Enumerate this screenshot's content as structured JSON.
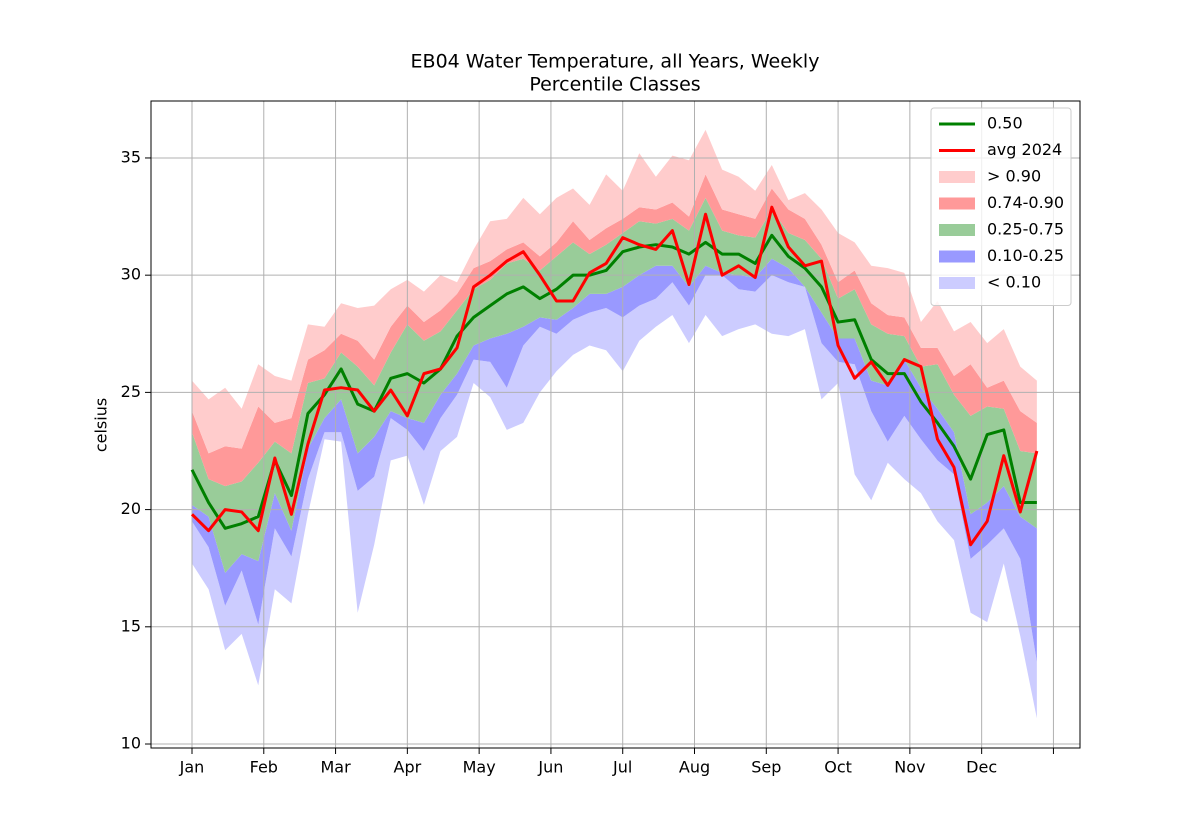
{
  "chart_data": {
    "type": "percentile-bands",
    "title": [
      "EB04 Water Temperature, all Years, Weekly",
      "Percentile Classes"
    ],
    "ylabel": "celsius",
    "x": [
      0,
      0.231,
      0.462,
      0.692,
      0.923,
      1.154,
      1.385,
      1.615,
      1.846,
      2.077,
      2.308,
      2.538,
      2.769,
      3,
      3.231,
      3.462,
      3.692,
      3.923,
      4.154,
      4.385,
      4.615,
      4.846,
      5.077,
      5.308,
      5.538,
      5.769,
      6,
      6.231,
      6.462,
      6.692,
      6.923,
      7.154,
      7.385,
      7.615,
      7.846,
      8.077,
      8.308,
      8.538,
      8.769,
      9,
      9.231,
      9.462,
      9.692,
      9.923,
      10.154,
      10.385,
      10.615,
      10.846,
      11.077,
      11.308,
      11.538,
      11.769
    ],
    "xlim": [
      -0.571,
      12.37
    ],
    "xticks": [
      {
        "value": 0,
        "label": "Jan"
      },
      {
        "value": 1,
        "label": "Feb"
      },
      {
        "value": 2,
        "label": "Mar"
      },
      {
        "value": 3,
        "label": "Apr"
      },
      {
        "value": 4,
        "label": "May"
      },
      {
        "value": 5,
        "label": "Jun"
      },
      {
        "value": 6,
        "label": "Jul"
      },
      {
        "value": 7,
        "label": "Aug"
      },
      {
        "value": 8,
        "label": "Sep"
      },
      {
        "value": 9,
        "label": "Oct"
      },
      {
        "value": 10,
        "label": "Nov"
      },
      {
        "value": 11,
        "label": "Dec"
      },
      {
        "value": 12,
        "label": null
      }
    ],
    "ylim": [
      9.83,
      37.43
    ],
    "yticks": [
      10,
      15,
      20,
      25,
      30,
      35
    ],
    "grid": true,
    "legend": "upper right",
    "band_floor": [
      17.7,
      16.6,
      14.0,
      14.7,
      12.5,
      16.6,
      16.0,
      19.8,
      23.0,
      22.9,
      15.6,
      18.5,
      22.1,
      22.3,
      20.2,
      22.5,
      23.1,
      25.4,
      24.8,
      23.4,
      23.7,
      25.0,
      25.9,
      26.6,
      27.0,
      26.8,
      25.9,
      27.2,
      27.8,
      28.3,
      27.1,
      28.3,
      27.4,
      27.7,
      27.9,
      27.5,
      27.4,
      27.7,
      24.7,
      25.4,
      21.5,
      20.4,
      22.0,
      21.3,
      20.7,
      19.5,
      18.7,
      15.6,
      15.2,
      17.7,
      14.6,
      11.1
    ],
    "bands": [
      {
        "name": "< 0.10",
        "color": "#ccccff",
        "values": [
          19.5,
          18.4,
          15.9,
          17.4,
          15.1,
          19.2,
          18.0,
          21.3,
          23.3,
          23.3,
          20.8,
          21.4,
          23.9,
          23.4,
          22.5,
          23.9,
          24.9,
          26.4,
          26.3,
          25.2,
          27.0,
          27.8,
          27.5,
          28.1,
          28.4,
          28.6,
          28.2,
          28.7,
          29.0,
          29.7,
          28.7,
          30.0,
          30.0,
          29.4,
          29.3,
          30.0,
          29.7,
          29.5,
          27.1,
          26.3,
          26.2,
          24.2,
          22.9,
          24.0,
          23.0,
          22.1,
          21.5,
          17.9,
          18.5,
          19.2,
          17.9,
          13.5
        ]
      },
      {
        "name": "0.10-0.25",
        "color": "#9999ff",
        "values": [
          20.2,
          19.7,
          17.3,
          18.1,
          17.8,
          20.7,
          19.1,
          22.6,
          23.9,
          24.7,
          22.4,
          23.1,
          24.2,
          23.9,
          23.7,
          24.9,
          25.8,
          27.0,
          27.3,
          27.5,
          27.8,
          28.2,
          28.1,
          28.6,
          29.2,
          29.2,
          29.5,
          30.0,
          30.4,
          30.4,
          29.5,
          30.4,
          30.1,
          30.0,
          29.9,
          30.7,
          30.3,
          29.5,
          28.4,
          27.3,
          27.3,
          25.5,
          25.3,
          26.4,
          25.2,
          24.3,
          23.3,
          19.8,
          20.3,
          21.0,
          19.7,
          19.2
        ]
      },
      {
        "name": "0.25-0.75",
        "color": "#99cc99",
        "values": [
          23.3,
          21.3,
          21.0,
          21.2,
          22.0,
          22.9,
          22.4,
          25.4,
          25.6,
          26.7,
          26.1,
          25.3,
          26.7,
          27.9,
          27.2,
          27.6,
          28.5,
          29.4,
          29.8,
          30.5,
          30.7,
          30.2,
          30.8,
          31.4,
          30.9,
          31.3,
          31.8,
          32.3,
          32.2,
          32.4,
          31.9,
          33.3,
          31.9,
          31.7,
          31.6,
          32.8,
          31.8,
          31.5,
          30.7,
          29.0,
          29.4,
          27.9,
          27.5,
          27.4,
          26.1,
          26.2,
          24.9,
          24.0,
          24.4,
          24.3,
          22.5,
          22.4
        ]
      },
      {
        "name": "0.74-0.90",
        "color": "#ff9999",
        "values": [
          24.2,
          22.4,
          22.7,
          22.6,
          24.4,
          23.7,
          23.9,
          26.4,
          26.8,
          27.5,
          27.2,
          26.4,
          27.8,
          28.7,
          28.0,
          28.5,
          29.2,
          30.3,
          30.6,
          31.1,
          31.4,
          30.8,
          31.4,
          32.3,
          31.5,
          32.0,
          32.4,
          32.9,
          32.8,
          33.1,
          32.5,
          34.3,
          32.8,
          32.6,
          32.4,
          33.7,
          32.8,
          32.4,
          31.3,
          29.7,
          30.2,
          28.8,
          28.3,
          28.2,
          26.9,
          26.9,
          25.7,
          26.2,
          25.2,
          25.5,
          24.2,
          23.7
        ]
      },
      {
        "name": "> 0.90",
        "color": "#ffcccc",
        "values": [
          25.5,
          24.7,
          25.2,
          24.3,
          26.2,
          25.7,
          25.5,
          27.9,
          27.8,
          28.8,
          28.6,
          28.7,
          29.4,
          29.8,
          29.3,
          30.0,
          29.7,
          31.1,
          32.3,
          32.4,
          33.3,
          32.6,
          33.3,
          33.7,
          33.0,
          34.3,
          33.6,
          35.2,
          34.2,
          35.1,
          34.9,
          36.2,
          34.5,
          34.2,
          33.6,
          34.7,
          33.2,
          33.5,
          32.8,
          31.8,
          31.4,
          30.4,
          30.3,
          30.1,
          28.0,
          28.9,
          27.6,
          28.0,
          27.1,
          27.7,
          26.1,
          25.5
        ]
      }
    ],
    "series": [
      {
        "name": "0.50",
        "color": "#008000",
        "values": [
          21.7,
          20.3,
          19.2,
          19.4,
          19.7,
          22.1,
          20.6,
          24.1,
          24.9,
          26.0,
          24.5,
          24.2,
          25.6,
          25.8,
          25.4,
          26.0,
          27.4,
          28.2,
          28.7,
          29.2,
          29.5,
          29.0,
          29.4,
          30.0,
          30.0,
          30.2,
          31.0,
          31.2,
          31.3,
          31.2,
          30.9,
          31.4,
          30.9,
          30.9,
          30.5,
          31.7,
          30.8,
          30.3,
          29.5,
          28.0,
          28.1,
          26.4,
          25.8,
          25.8,
          24.6,
          23.7,
          22.7,
          21.3,
          23.2,
          23.4,
          20.3,
          20.3
        ]
      },
      {
        "name": "avg 2024",
        "color": "#ff0000",
        "values": [
          19.8,
          19.1,
          20.0,
          19.9,
          19.1,
          22.2,
          19.8,
          22.8,
          25.1,
          25.2,
          25.1,
          24.2,
          25.1,
          24.0,
          25.8,
          26.0,
          26.9,
          29.5,
          30.0,
          30.6,
          31.0,
          30.0,
          28.9,
          28.9,
          30.1,
          30.5,
          31.6,
          31.3,
          31.1,
          31.9,
          29.6,
          32.6,
          30.0,
          30.4,
          29.9,
          32.9,
          31.2,
          30.4,
          30.6,
          27.0,
          25.6,
          26.3,
          25.3,
          26.4,
          26.1,
          23.0,
          21.8,
          18.5,
          19.5,
          22.3,
          19.9,
          22.5
        ]
      }
    ]
  }
}
